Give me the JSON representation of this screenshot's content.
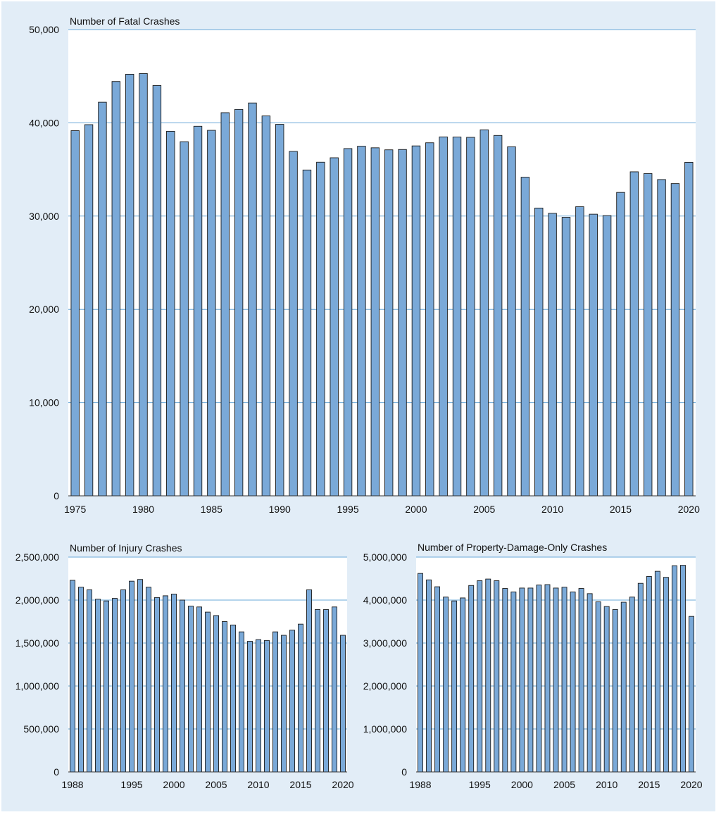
{
  "colors": {
    "panel_bg": "#e2edf7",
    "plot_bg": "#ffffff",
    "bar_fill": "#7aa9d8",
    "bar_stroke": "#1a1a1a",
    "grid": "#6aa8d8"
  },
  "chart_data": [
    {
      "type": "bar",
      "title": "Number of Fatal Crashes",
      "xlabel": "",
      "ylabel": "",
      "ylim": [
        0,
        50000
      ],
      "grid": true,
      "y_ticks": [
        0,
        10000,
        20000,
        30000,
        40000,
        50000
      ],
      "y_tick_labels": [
        "0",
        "10,000",
        "20,000",
        "30,000",
        "40,000",
        "50,000"
      ],
      "x_tick_labels": [
        "1975",
        "1980",
        "1985",
        "1990",
        "1995",
        "2000",
        "2005",
        "2010",
        "2015",
        "2020"
      ],
      "categories": [
        1975,
        1976,
        1977,
        1978,
        1979,
        1980,
        1981,
        1982,
        1983,
        1984,
        1985,
        1986,
        1987,
        1988,
        1989,
        1990,
        1991,
        1992,
        1993,
        1994,
        1995,
        1996,
        1997,
        1998,
        1999,
        2000,
        2001,
        2002,
        2003,
        2004,
        2005,
        2006,
        2007,
        2008,
        2009,
        2010,
        2011,
        2012,
        2013,
        2014,
        2015,
        2016,
        2017,
        2018,
        2019,
        2020
      ],
      "values": [
        39161,
        39804,
        42211,
        44433,
        45208,
        45284,
        44000,
        39092,
        37976,
        39631,
        39196,
        41090,
        41438,
        42130,
        40741,
        39836,
        36937,
        34942,
        35780,
        36254,
        37241,
        37494,
        37324,
        37107,
        37140,
        37526,
        37862,
        38491,
        38477,
        38444,
        39252,
        38648,
        37435,
        34172,
        30862,
        30296,
        29867,
        31006,
        30203,
        30056,
        32539,
        34748,
        34560,
        33919,
        33487,
        35766
      ]
    },
    {
      "type": "bar",
      "title": "Number of Injury Crashes",
      "xlabel": "",
      "ylabel": "",
      "ylim": [
        0,
        2500000
      ],
      "grid": true,
      "y_ticks": [
        0,
        500000,
        1000000,
        1500000,
        2000000,
        2500000
      ],
      "y_tick_labels": [
        "0",
        "500,000",
        "1,000,000",
        "1,500,000",
        "2,000,000",
        "2,500,000"
      ],
      "x_tick_labels": [
        "1988",
        "1995",
        "2000",
        "2005",
        "2010",
        "2015",
        "2020"
      ],
      "categories": [
        1988,
        1989,
        1990,
        1991,
        1992,
        1993,
        1994,
        1995,
        1996,
        1997,
        1998,
        1999,
        2000,
        2001,
        2002,
        2003,
        2004,
        2005,
        2006,
        2007,
        2008,
        2009,
        2010,
        2011,
        2012,
        2013,
        2014,
        2015,
        2016,
        2017,
        2018,
        2019,
        2020
      ],
      "values": [
        2230000,
        2150000,
        2120000,
        2010000,
        1990000,
        2020000,
        2120000,
        2220000,
        2240000,
        2150000,
        2030000,
        2050000,
        2070000,
        2000000,
        1930000,
        1920000,
        1860000,
        1820000,
        1750000,
        1710000,
        1630000,
        1520000,
        1540000,
        1530000,
        1630000,
        1590000,
        1650000,
        1720000,
        2120000,
        1890000,
        1890000,
        1920000,
        1590000
      ]
    },
    {
      "type": "bar",
      "title": "Number of Property-Damage-Only Crashes",
      "xlabel": "",
      "ylabel": "",
      "ylim": [
        0,
        5000000
      ],
      "grid": true,
      "y_ticks": [
        0,
        1000000,
        2000000,
        3000000,
        4000000,
        5000000
      ],
      "y_tick_labels": [
        "0",
        "1,000,000",
        "2,000,000",
        "3,000,000",
        "4,000,000",
        "5,000,000"
      ],
      "x_tick_labels": [
        "1988",
        "1995",
        "2000",
        "2005",
        "2010",
        "2015",
        "2020"
      ],
      "categories": [
        1988,
        1989,
        1990,
        1991,
        1992,
        1993,
        1994,
        1995,
        1996,
        1997,
        1998,
        1999,
        2000,
        2001,
        2002,
        2003,
        2004,
        2005,
        2006,
        2007,
        2008,
        2009,
        2010,
        2011,
        2012,
        2013,
        2014,
        2015,
        2016,
        2017,
        2018,
        2019,
        2020
      ],
      "values": [
        4620000,
        4470000,
        4310000,
        4070000,
        3980000,
        4050000,
        4340000,
        4450000,
        4490000,
        4450000,
        4270000,
        4190000,
        4280000,
        4280000,
        4350000,
        4360000,
        4280000,
        4300000,
        4190000,
        4270000,
        4150000,
        3960000,
        3850000,
        3780000,
        3950000,
        4070000,
        4390000,
        4550000,
        4670000,
        4530000,
        4800000,
        4810000,
        3620000
      ]
    }
  ]
}
